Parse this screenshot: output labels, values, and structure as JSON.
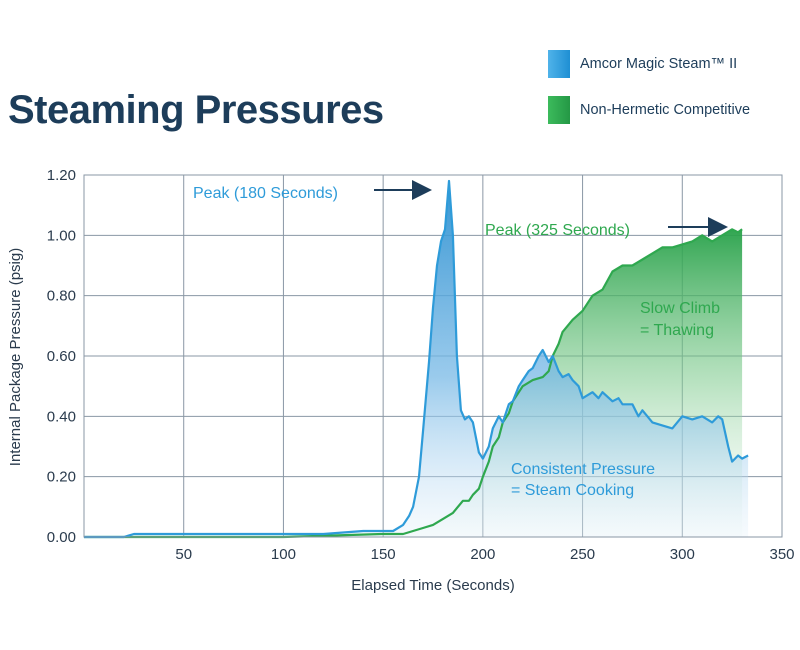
{
  "chart_data": {
    "type": "area",
    "title": "Steaming Pressures",
    "xlabel": "Elapsed Time (Seconds)",
    "ylabel": "Internal Package Pressure (psig)",
    "xlim": [
      0,
      350
    ],
    "ylim": [
      0,
      1.2
    ],
    "x_ticks": [
      "50",
      "100",
      "150",
      "200",
      "250",
      "300",
      "350"
    ],
    "y_ticks": [
      "0.00",
      "0.20",
      "0.40",
      "0.60",
      "0.80",
      "1.00",
      "1.20"
    ],
    "grid": true,
    "legend_position": "top-right",
    "series": [
      {
        "name": "Amcor Magic Steam™ II",
        "color": "#2e9bd9",
        "x": [
          0,
          20,
          25,
          40,
          50,
          60,
          80,
          100,
          120,
          140,
          150,
          155,
          160,
          163,
          165,
          168,
          170,
          173,
          175,
          177,
          179,
          181,
          183,
          185,
          187,
          189,
          191,
          193,
          195,
          198,
          200,
          203,
          205,
          208,
          210,
          213,
          215,
          218,
          220,
          223,
          225,
          228,
          230,
          233,
          235,
          238,
          240,
          243,
          245,
          248,
          250,
          255,
          258,
          260,
          265,
          268,
          270,
          275,
          278,
          280,
          285,
          290,
          295,
          300,
          305,
          310,
          315,
          318,
          320,
          323,
          325,
          328,
          330,
          333
        ],
        "y": [
          0.0,
          0.0,
          0.01,
          0.01,
          0.01,
          0.01,
          0.01,
          0.01,
          0.01,
          0.02,
          0.02,
          0.02,
          0.04,
          0.07,
          0.1,
          0.2,
          0.35,
          0.58,
          0.76,
          0.9,
          0.98,
          1.02,
          1.18,
          1.0,
          0.6,
          0.42,
          0.39,
          0.4,
          0.38,
          0.28,
          0.26,
          0.3,
          0.36,
          0.4,
          0.38,
          0.44,
          0.45,
          0.5,
          0.52,
          0.55,
          0.56,
          0.6,
          0.62,
          0.58,
          0.6,
          0.55,
          0.53,
          0.54,
          0.52,
          0.5,
          0.46,
          0.48,
          0.46,
          0.48,
          0.45,
          0.46,
          0.44,
          0.44,
          0.4,
          0.42,
          0.38,
          0.37,
          0.36,
          0.4,
          0.39,
          0.4,
          0.38,
          0.4,
          0.39,
          0.3,
          0.25,
          0.27,
          0.26,
          0.27
        ]
      },
      {
        "name": "Non-Hermetic Competitive",
        "color": "#2fa84f",
        "x": [
          0,
          50,
          100,
          150,
          160,
          170,
          175,
          180,
          185,
          190,
          193,
          195,
          198,
          200,
          203,
          205,
          208,
          210,
          213,
          215,
          218,
          220,
          225,
          230,
          233,
          235,
          238,
          240,
          245,
          250,
          255,
          260,
          265,
          270,
          275,
          280,
          285,
          290,
          295,
          300,
          305,
          310,
          315,
          320,
          325,
          328,
          330
        ],
        "y": [
          0.0,
          0.0,
          0.0,
          0.01,
          0.01,
          0.03,
          0.04,
          0.06,
          0.08,
          0.12,
          0.12,
          0.14,
          0.16,
          0.2,
          0.25,
          0.3,
          0.33,
          0.38,
          0.41,
          0.45,
          0.48,
          0.5,
          0.52,
          0.53,
          0.55,
          0.6,
          0.64,
          0.68,
          0.72,
          0.75,
          0.8,
          0.82,
          0.88,
          0.9,
          0.9,
          0.92,
          0.94,
          0.96,
          0.96,
          0.97,
          0.98,
          1.0,
          0.98,
          1.0,
          1.02,
          1.01,
          1.02
        ]
      }
    ],
    "annotations": [
      {
        "id": "peak_blue",
        "text": "Peak (180 Seconds)"
      },
      {
        "id": "peak_green",
        "text": "Peak (325 Seconds)"
      },
      {
        "id": "slow_climb_1",
        "text": "Slow Climb"
      },
      {
        "id": "slow_climb_2",
        "text": "= Thawing"
      },
      {
        "id": "consistent_1",
        "text": "Consistent Pressure"
      },
      {
        "id": "consistent_2",
        "text": "= Steam Cooking"
      }
    ]
  }
}
